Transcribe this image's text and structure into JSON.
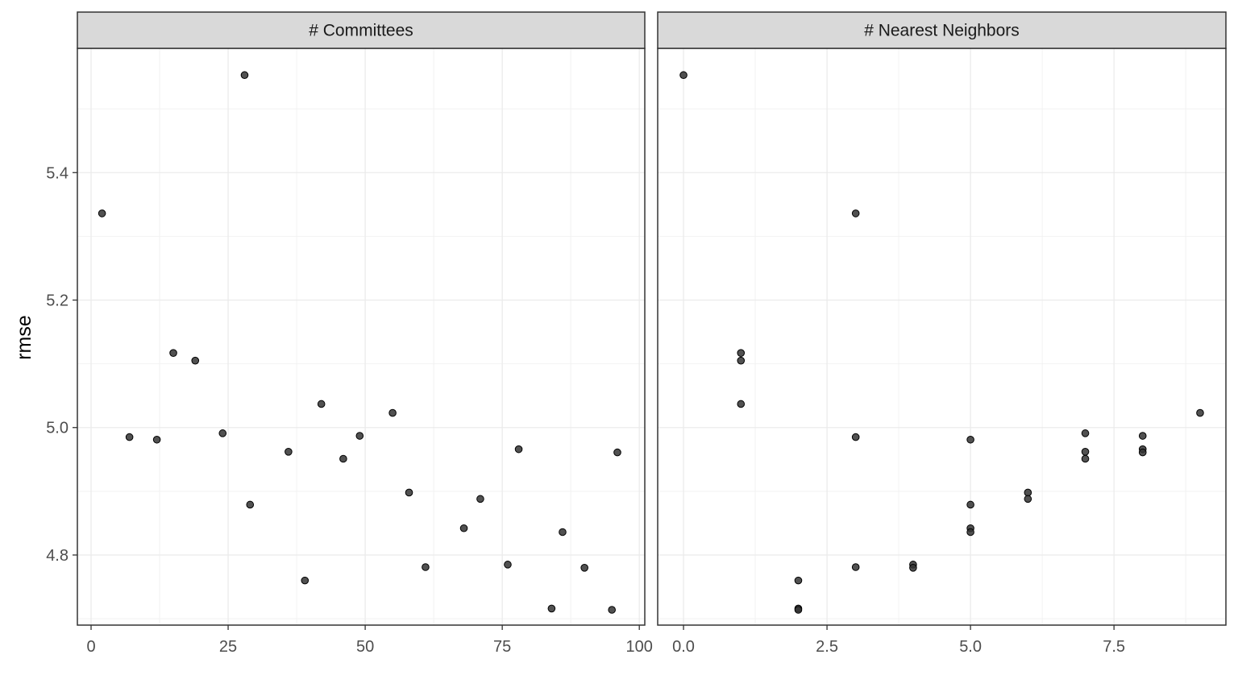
{
  "chart_data": [
    {
      "type": "scatter",
      "panel": "# Committees",
      "xlim": [
        -2.5,
        101
      ],
      "ylim": [
        4.69,
        5.595
      ],
      "ylabel": "rmse",
      "x_ticks": [
        0,
        25,
        50,
        75,
        100
      ],
      "x_tick_labels": [
        "0",
        "25",
        "50",
        "75",
        "100"
      ],
      "y_ticks": [
        4.8,
        5.0,
        5.2,
        5.4
      ],
      "y_tick_labels": [
        "4.8",
        "5.0",
        "5.2",
        "5.4"
      ],
      "grid": true,
      "points": [
        {
          "x": 2,
          "y": 5.336
        },
        {
          "x": 7,
          "y": 4.985
        },
        {
          "x": 12,
          "y": 4.981
        },
        {
          "x": 15,
          "y": 5.117
        },
        {
          "x": 19,
          "y": 5.105
        },
        {
          "x": 24,
          "y": 4.991
        },
        {
          "x": 28,
          "y": 5.553
        },
        {
          "x": 29,
          "y": 4.879
        },
        {
          "x": 36,
          "y": 4.962
        },
        {
          "x": 39,
          "y": 4.76
        },
        {
          "x": 42,
          "y": 5.037
        },
        {
          "x": 46,
          "y": 4.951
        },
        {
          "x": 49,
          "y": 4.987
        },
        {
          "x": 55,
          "y": 5.023
        },
        {
          "x": 58,
          "y": 4.898
        },
        {
          "x": 61,
          "y": 4.781
        },
        {
          "x": 68,
          "y": 4.842
        },
        {
          "x": 71,
          "y": 4.888
        },
        {
          "x": 76,
          "y": 4.785
        },
        {
          "x": 78,
          "y": 4.966
        },
        {
          "x": 84,
          "y": 4.716
        },
        {
          "x": 86,
          "y": 4.836
        },
        {
          "x": 90,
          "y": 4.78
        },
        {
          "x": 95,
          "y": 4.714
        },
        {
          "x": 96,
          "y": 4.961
        }
      ]
    },
    {
      "type": "scatter",
      "panel": "# Nearest Neighbors",
      "xlim": [
        -0.45,
        9.45
      ],
      "ylim": [
        4.69,
        5.595
      ],
      "x_ticks": [
        0,
        2.5,
        5,
        7.5
      ],
      "x_tick_labels": [
        "0.0",
        "2.5",
        "5.0",
        "7.5"
      ],
      "grid": true,
      "points": [
        {
          "x": 0,
          "y": 5.553
        },
        {
          "x": 1,
          "y": 5.117
        },
        {
          "x": 1,
          "y": 5.105
        },
        {
          "x": 1,
          "y": 5.037
        },
        {
          "x": 2,
          "y": 4.76
        },
        {
          "x": 2,
          "y": 4.716
        },
        {
          "x": 2,
          "y": 4.714
        },
        {
          "x": 3,
          "y": 5.336
        },
        {
          "x": 3,
          "y": 4.985
        },
        {
          "x": 3,
          "y": 4.781
        },
        {
          "x": 4,
          "y": 4.785
        },
        {
          "x": 4,
          "y": 4.78
        },
        {
          "x": 5,
          "y": 4.981
        },
        {
          "x": 5,
          "y": 4.879
        },
        {
          "x": 5,
          "y": 4.842
        },
        {
          "x": 5,
          "y": 4.836
        },
        {
          "x": 6,
          "y": 4.898
        },
        {
          "x": 6,
          "y": 4.888
        },
        {
          "x": 7,
          "y": 4.991
        },
        {
          "x": 7,
          "y": 4.962
        },
        {
          "x": 7,
          "y": 4.951
        },
        {
          "x": 8,
          "y": 4.987
        },
        {
          "x": 8,
          "y": 4.966
        },
        {
          "x": 8,
          "y": 4.961
        },
        {
          "x": 9,
          "y": 5.023
        }
      ]
    }
  ],
  "style": {
    "point_fill": "#333333",
    "point_stroke": "#000000",
    "strip_fill": "#d9d9d9",
    "grid_major": "#ebebeb",
    "grid_minor": "#f2f2f2",
    "panel_border": "#333333"
  }
}
